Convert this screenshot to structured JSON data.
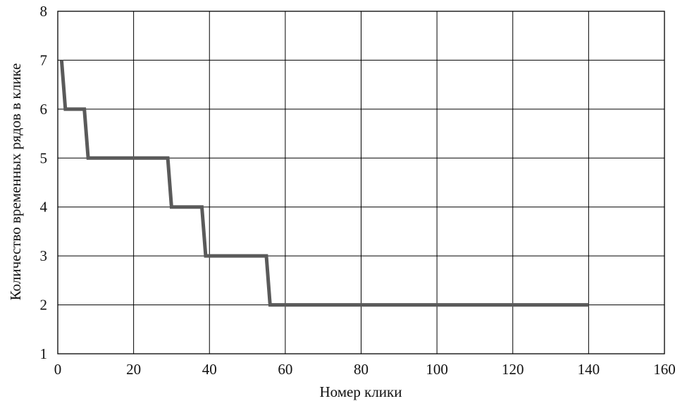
{
  "chart_data": {
    "type": "line",
    "title": "",
    "xlabel": "Номер клики",
    "ylabel": "Количество временных рядов в клике",
    "xlim": [
      0,
      160
    ],
    "ylim": [
      1,
      8
    ],
    "xticks": [
      0,
      20,
      40,
      60,
      80,
      100,
      120,
      140,
      160
    ],
    "yticks": [
      1,
      2,
      3,
      4,
      5,
      6,
      7,
      8
    ],
    "grid": true,
    "legend": "none",
    "line_color": "#5a5a5a",
    "series": [
      {
        "x": [
          1,
          2,
          7,
          8,
          29,
          30,
          38,
          39,
          55,
          56,
          140
        ],
        "y": [
          7,
          6,
          6,
          5,
          5,
          4,
          4,
          3,
          3,
          2,
          2
        ]
      }
    ]
  }
}
